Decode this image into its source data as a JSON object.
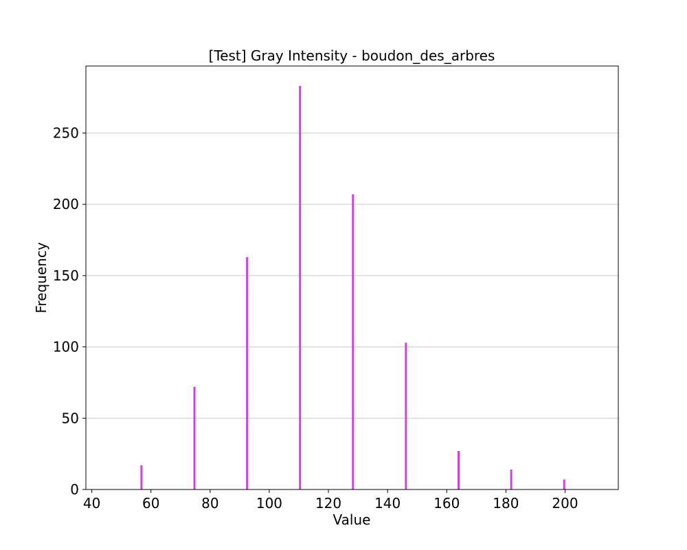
{
  "chart_data": {
    "type": "bar",
    "title": "[Test] Gray Intensity - boudon_des_arbres",
    "xlabel": "Value",
    "ylabel": "Frequency",
    "xlim": [
      38,
      218
    ],
    "ylim": [
      0,
      297
    ],
    "xticks": [
      40,
      60,
      80,
      100,
      120,
      140,
      160,
      180,
      200
    ],
    "yticks": [
      0,
      50,
      100,
      150,
      200,
      250
    ],
    "grid": "horizontal",
    "bar_color": "#cc44dd",
    "bars": [
      {
        "x": 56.8,
        "value": 17
      },
      {
        "x": 74.7,
        "value": 72
      },
      {
        "x": 92.5,
        "value": 163
      },
      {
        "x": 110.4,
        "value": 283
      },
      {
        "x": 128.3,
        "value": 207
      },
      {
        "x": 146.2,
        "value": 103
      },
      {
        "x": 164.0,
        "value": 27
      },
      {
        "x": 181.8,
        "value": 14
      },
      {
        "x": 199.7,
        "value": 7
      }
    ]
  }
}
